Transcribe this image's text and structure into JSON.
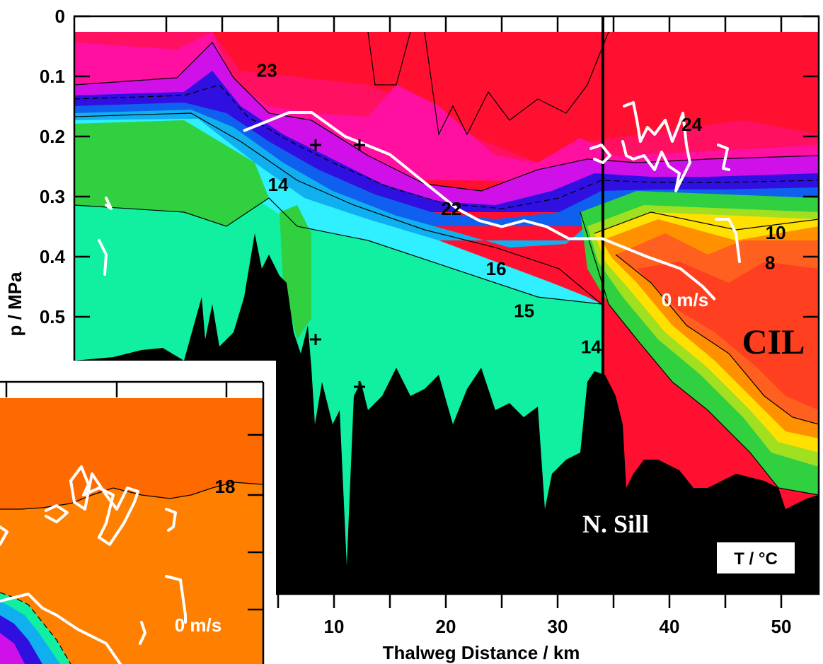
{
  "chart_data": [
    {
      "type": "heatmap",
      "title": "",
      "xlabel": "Thalweg Distance / km",
      "ylabel": "p / MPa",
      "xlim": [
        0,
        54
      ],
      "ylim": [
        0.6,
        0
      ],
      "y_ticks": [
        "0",
        "0.1",
        "0.2",
        "0.3",
        "0.4",
        "0.5"
      ],
      "x_ticks": [
        "10",
        "20",
        "30",
        "40",
        "50"
      ],
      "colorbar_units": "T / °C",
      "palette": [
        "#ff1030",
        "#ff10a0",
        "#d010e8",
        "#3010e0",
        "#1060f0",
        "#10b0f0",
        "#30f0ff",
        "#10f0a0",
        "#30d040",
        "#a0e020",
        "#ffe000",
        "#ff9000",
        "#ff4020"
      ],
      "isotherm_labels": [
        {
          "text": "23",
          "x": 4,
          "y": 0.09
        },
        {
          "text": "24",
          "x": 42,
          "y": 0.18
        },
        {
          "text": "14",
          "x": 5,
          "y": 0.28
        },
        {
          "text": "22",
          "x": 20.5,
          "y": 0.32
        },
        {
          "text": "10",
          "x": 49.5,
          "y": 0.36
        },
        {
          "text": "16",
          "x": 24.5,
          "y": 0.42
        },
        {
          "text": "8",
          "x": 49,
          "y": 0.41
        },
        {
          "text": "15",
          "x": 27,
          "y": 0.49
        },
        {
          "text": "14",
          "x": 33,
          "y": 0.55
        }
      ],
      "velocity_label": "0 m/s",
      "annotations": {
        "cil": "CIL",
        "sill": "N. Sill"
      },
      "zero_velocity_contour": [
        [
          2,
          0.19
        ],
        [
          6,
          0.16
        ],
        [
          8,
          0.16
        ],
        [
          11,
          0.2
        ],
        [
          15,
          0.23
        ],
        [
          17,
          0.26
        ],
        [
          19,
          0.29
        ],
        [
          21,
          0.32
        ],
        [
          23,
          0.34
        ],
        [
          25,
          0.35
        ],
        [
          27,
          0.34
        ],
        [
          29,
          0.35
        ],
        [
          31,
          0.37
        ],
        [
          34,
          0.37
        ],
        [
          38,
          0.4
        ],
        [
          41,
          0.42
        ],
        [
          43,
          0.45
        ],
        [
          44,
          0.47
        ]
      ],
      "section_marker_km": 34
    },
    {
      "type": "heatmap",
      "inset": true,
      "isotherm_labels": [
        {
          "text": "18"
        }
      ],
      "velocity_label": "0 m/s"
    }
  ]
}
